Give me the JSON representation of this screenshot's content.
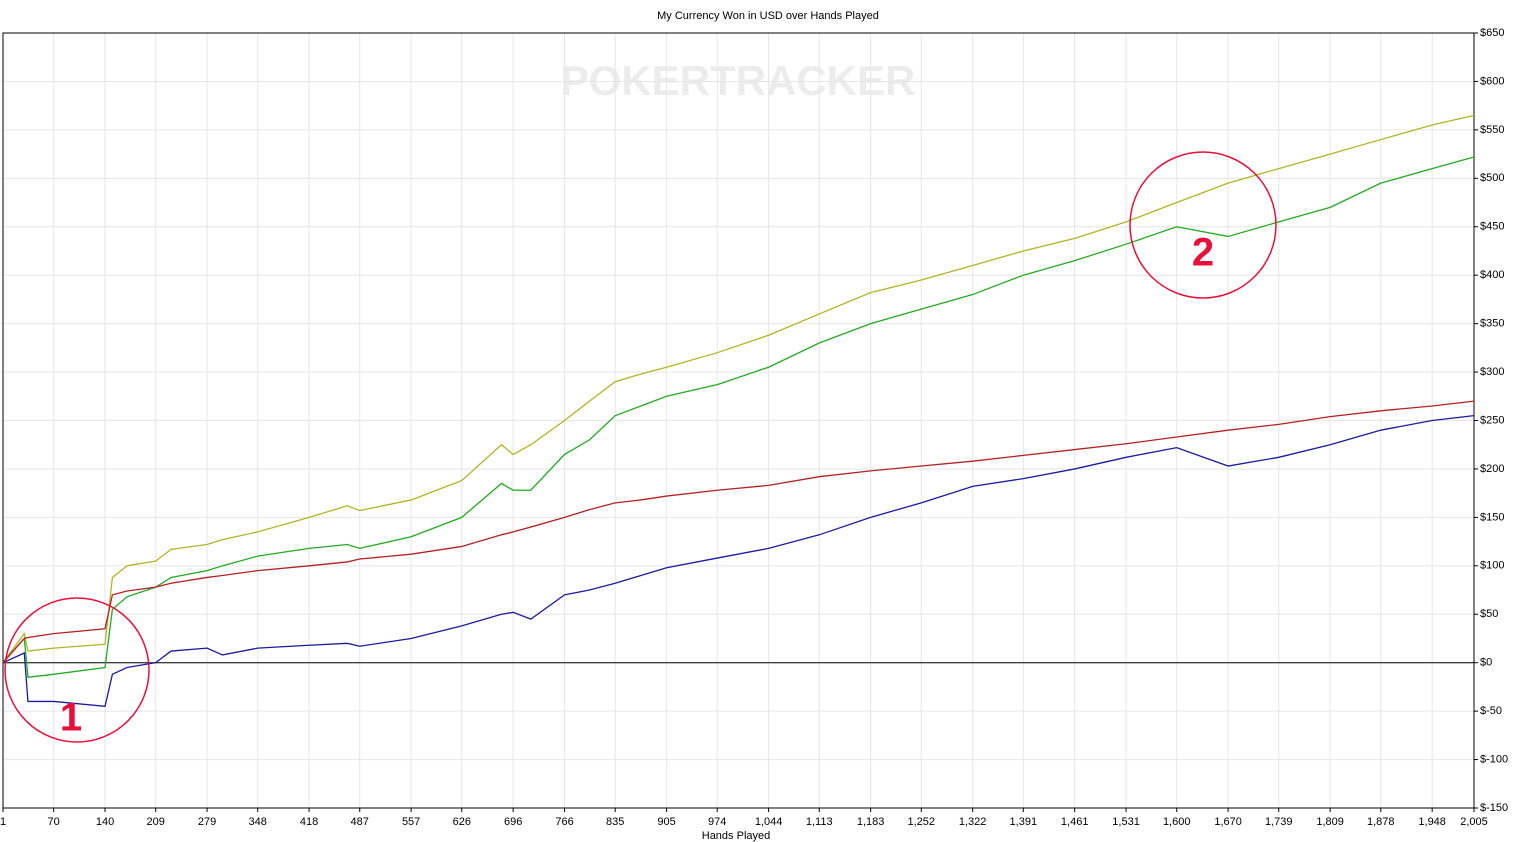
{
  "chart_data": {
    "type": "line",
    "title": "My Currency Won in USD over Hands Played",
    "x_label": "Hands Played",
    "watermark": "POKERTRACKER",
    "annotations": [
      "1",
      "2"
    ],
    "x": [
      1,
      30,
      35,
      70,
      140,
      150,
      170,
      209,
      230,
      279,
      300,
      348,
      418,
      470,
      487,
      557,
      626,
      680,
      696,
      720,
      766,
      800,
      835,
      870,
      905,
      974,
      1044,
      1113,
      1183,
      1252,
      1322,
      1391,
      1461,
      1531,
      1600,
      1670,
      1739,
      1809,
      1878,
      1948,
      2005
    ],
    "series": [
      {
        "color": "#b3b326",
        "values": [
          0,
          30,
          12,
          15,
          19,
          88,
          100,
          105,
          117,
          122,
          127,
          135,
          150,
          162,
          157,
          168,
          188,
          225,
          215,
          225,
          250,
          270,
          290,
          298,
          305,
          320,
          338,
          360,
          382,
          395,
          410,
          425,
          438,
          455,
          475,
          495,
          510,
          525,
          540,
          555,
          565
        ]
      },
      {
        "color": "#22aa22",
        "values": [
          0,
          25,
          -15,
          -12,
          -5,
          55,
          68,
          78,
          88,
          95,
          100,
          110,
          118,
          122,
          118,
          130,
          150,
          185,
          178,
          178,
          215,
          230,
          255,
          265,
          275,
          287,
          305,
          330,
          350,
          365,
          380,
          400,
          415,
          432,
          450,
          440,
          455,
          470,
          495,
          510,
          522
        ]
      },
      {
        "color": "#b22222",
        "values": [
          0,
          25,
          26,
          30,
          35,
          70,
          74,
          78,
          82,
          88,
          90,
          95,
          100,
          104,
          107,
          112,
          120,
          132,
          135,
          140,
          150,
          158,
          165,
          168,
          172,
          178,
          183,
          192,
          198,
          203,
          208,
          214,
          220,
          226,
          233,
          240,
          246,
          254,
          260,
          265,
          270
        ]
      },
      {
        "color": "#1a1aa0",
        "values": [
          0,
          10,
          -40,
          -40,
          -45,
          -12,
          -5,
          0,
          12,
          15,
          8,
          15,
          18,
          20,
          17,
          25,
          38,
          50,
          52,
          45,
          70,
          75,
          82,
          90,
          98,
          108,
          118,
          132,
          150,
          165,
          182,
          190,
          200,
          212,
          222,
          203,
          212,
          225,
          240,
          250,
          255
        ]
      }
    ],
    "xlim": [
      1,
      2005
    ],
    "xticks": [
      1,
      70,
      140,
      209,
      279,
      348,
      418,
      487,
      557,
      626,
      696,
      766,
      835,
      905,
      974,
      {
        "value": 1044,
        "label": "1,044"
      },
      {
        "value": 1113,
        "label": "1,113"
      },
      {
        "value": 1183,
        "label": "1,183"
      },
      {
        "value": 1252,
        "label": "1,252"
      },
      {
        "value": 1322,
        "label": "1,322"
      },
      {
        "value": 1391,
        "label": "1,391"
      },
      {
        "value": 1461,
        "label": "1,461"
      },
      {
        "value": 1531,
        "label": "1,531"
      },
      {
        "value": 1600,
        "label": "1,600"
      },
      {
        "value": 1670,
        "label": "1,670"
      },
      {
        "value": 1739,
        "label": "1,739"
      },
      {
        "value": 1809,
        "label": "1,809"
      },
      {
        "value": 1878,
        "label": "1,878"
      },
      {
        "value": 1948,
        "label": "1,948"
      },
      {
        "value": 2005,
        "label": "2,005"
      }
    ],
    "ylim": [
      -150,
      650
    ],
    "yticks": [
      {
        "value": -150,
        "label": "$-150"
      },
      {
        "value": -100,
        "label": "$-100"
      },
      {
        "value": -50,
        "label": "$-50"
      },
      {
        "value": 0,
        "label": "$0"
      },
      {
        "value": 50,
        "label": "$50"
      },
      {
        "value": 100,
        "label": "$100"
      },
      {
        "value": 150,
        "label": "$150"
      },
      {
        "value": 200,
        "label": "$200"
      },
      {
        "value": 250,
        "label": "$250"
      },
      {
        "value": 300,
        "label": "$300"
      },
      {
        "value": 350,
        "label": "$350"
      },
      {
        "value": 400,
        "label": "$400"
      },
      {
        "value": 450,
        "label": "$450"
      },
      {
        "value": 500,
        "label": "$500"
      },
      {
        "value": 550,
        "label": "$550"
      },
      {
        "value": 600,
        "label": "$600"
      },
      {
        "value": 650,
        "label": "$650"
      }
    ],
    "grid": true
  }
}
